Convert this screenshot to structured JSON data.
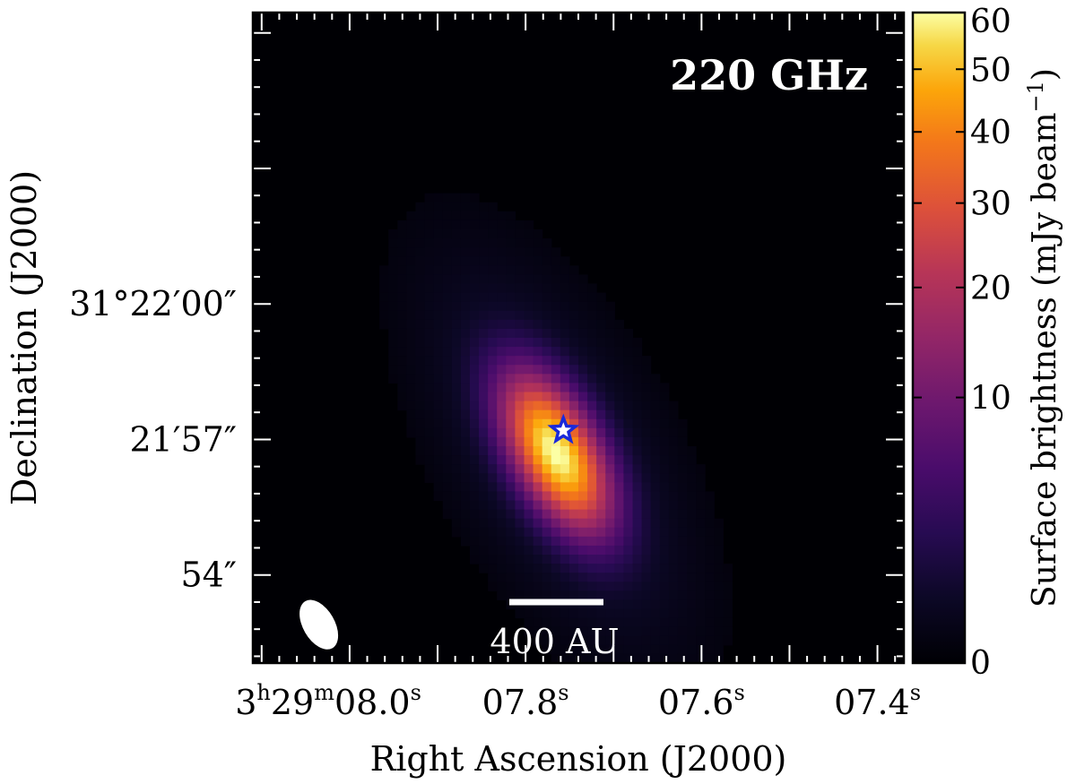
{
  "chart_data": {
    "type": "heatmap",
    "panel_label": "220 GHz",
    "xlabel": "Right Ascension (J2000)",
    "ylabel": "Declination (J2000)",
    "colorbar_label": "Surface brightness (mJy beam",
    "colorbar_label_sup": "−1",
    "colorbar_label_close": ")",
    "colormap": "inferno",
    "colorbar_scale": "sqrt",
    "colorbar_range": [
      0,
      60
    ],
    "colorbar_ticks": [
      {
        "value": 0,
        "label": "0"
      },
      {
        "value": 10,
        "label": "10"
      },
      {
        "value": 20,
        "label": "20"
      },
      {
        "value": 30,
        "label": "30"
      },
      {
        "value": 40,
        "label": "40"
      },
      {
        "value": 50,
        "label": "50"
      },
      {
        "value": 60,
        "label": "60"
      }
    ],
    "ra_range_s": [
      8.11,
      7.37
    ],
    "dec_range_arcsec": [
      52.05,
      66.45
    ],
    "x_ticks": [
      {
        "ra_s": 8.0,
        "main": "3",
        "sup1": "h",
        "main2": "29",
        "sup2": "m",
        "main3": "08.0",
        "sup3": "s"
      },
      {
        "ra_s": 7.8,
        "main": "07.8",
        "sup1": "s"
      },
      {
        "ra_s": 7.6,
        "main": "07.6",
        "sup1": "s"
      },
      {
        "ra_s": 7.4,
        "main": "07.4",
        "sup1": "s"
      }
    ],
    "y_ticks": [
      {
        "dec_arcsec": 60,
        "label": "31°22′00″"
      },
      {
        "dec_arcsec": 57,
        "label": "21′57″"
      },
      {
        "dec_arcsec": 54,
        "label": "54″"
      }
    ],
    "source": {
      "peak_mJy_per_beam": 60,
      "ra_s": 7.765,
      "dec_arcsec": 56.7,
      "position_angle_deg": 28,
      "fwhm_major_arcsec": 2.5,
      "fwhm_minor_arcsec": 1.2
    },
    "star_marker": {
      "ra_s": 7.757,
      "dec_arcsec": 57.2,
      "color": "#1a2adb"
    },
    "beam": {
      "ra_s": 8.035,
      "dec_arcsec": 52.9,
      "major_arcsec": 1.2,
      "minor_arcsec": 0.7,
      "position_angle_deg": -30
    },
    "scale_bar": {
      "label": "400 AU",
      "length_s": 0.107,
      "center_ra_s": 7.765,
      "dec_arcsec": 53.4
    },
    "colors": {
      "background": "#000004",
      "annotation": "#ffffff"
    }
  }
}
